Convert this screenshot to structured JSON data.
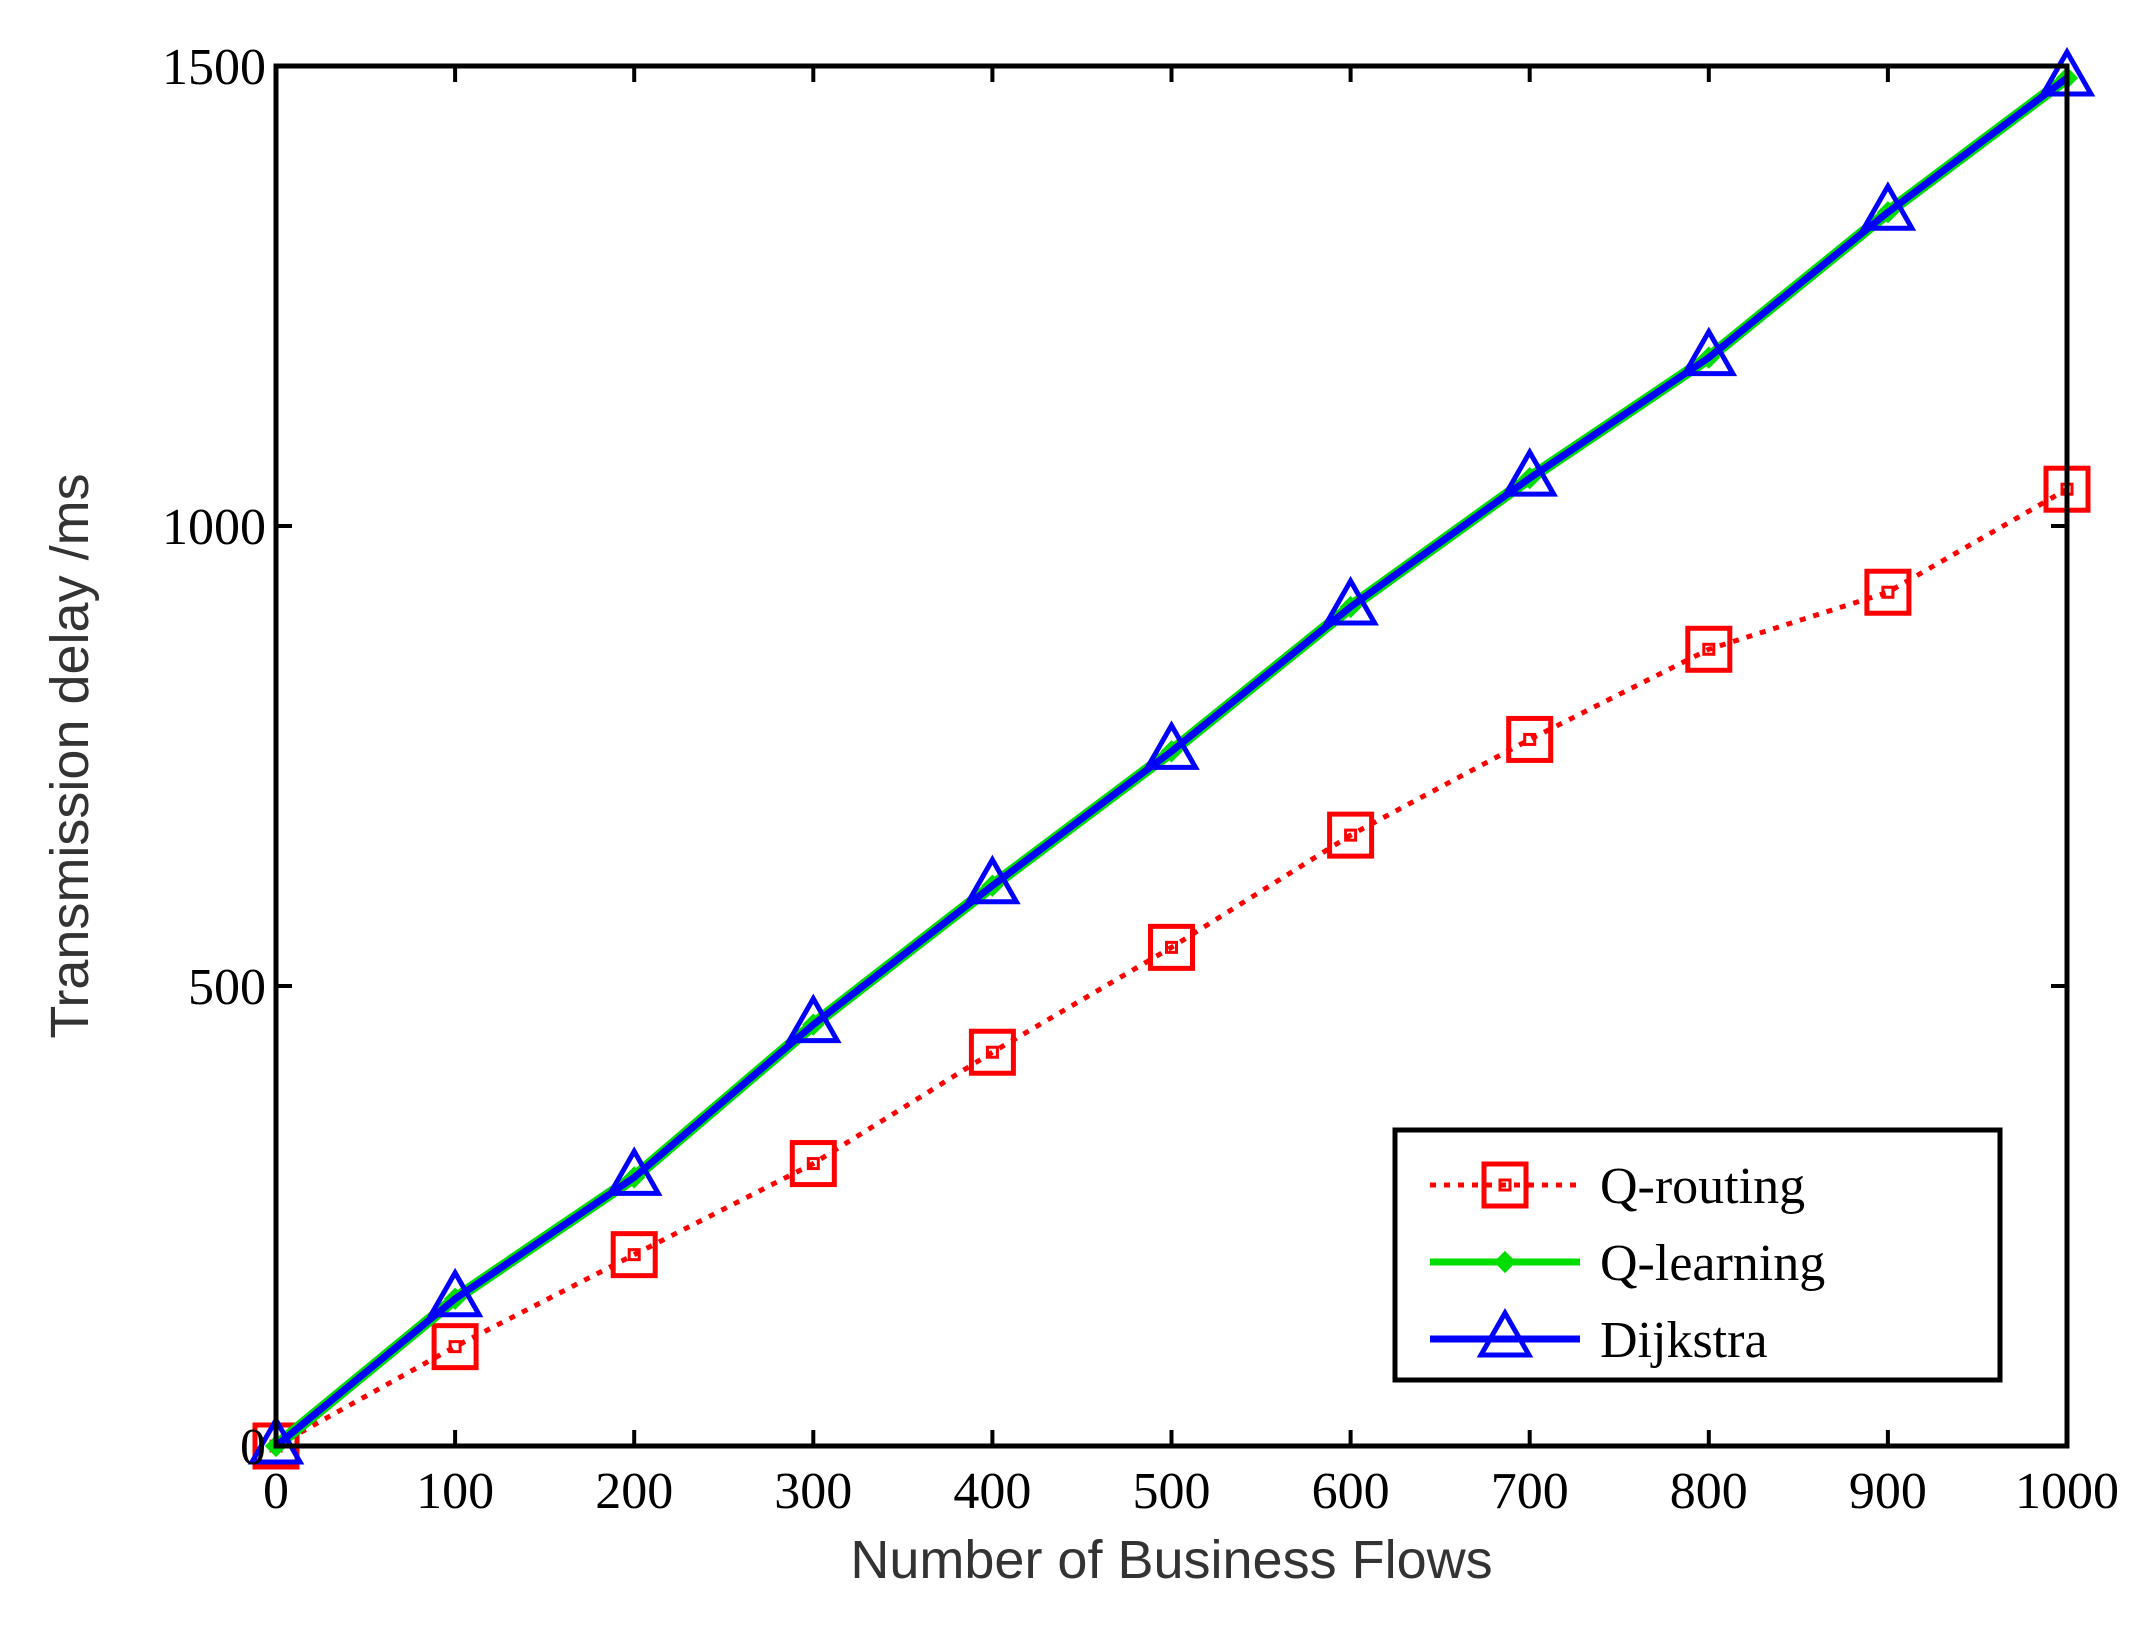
{
  "chart_data": {
    "type": "line",
    "xlabel": "Number of Business Flows",
    "ylabel": "Transmission delay  /ms",
    "xlim": [
      0,
      1000
    ],
    "ylim": [
      0,
      1500
    ],
    "xticks": [
      "0",
      "100",
      "200",
      "300",
      "400",
      "500",
      "600",
      "700",
      "800",
      "900",
      "1000"
    ],
    "yticks": [
      "0",
      "500",
      "1000",
      "1500"
    ],
    "grid": false,
    "legend_position": "bottom-right",
    "x": [
      0,
      100,
      200,
      300,
      400,
      500,
      600,
      700,
      800,
      900,
      1000
    ],
    "series": [
      {
        "name": "Q-routing",
        "color": "#ff0000",
        "line_style": "dotted",
        "marker": "square",
        "values": [
          0,
          108,
          208,
          307,
          428,
          542,
          664,
          768,
          866,
          928,
          1040
        ]
      },
      {
        "name": "Q-learning",
        "color": "#00dd00",
        "line_style": "solid",
        "marker": "diamond",
        "values": [
          0,
          160,
          292,
          458,
          609,
          755,
          912,
          1052,
          1183,
          1341,
          1487
        ]
      },
      {
        "name": "Dijkstra",
        "color": "#0000ff",
        "line_style": "solid",
        "marker": "triangle",
        "values": [
          0,
          160,
          292,
          458,
          609,
          755,
          912,
          1052,
          1183,
          1341,
          1487
        ]
      }
    ]
  }
}
